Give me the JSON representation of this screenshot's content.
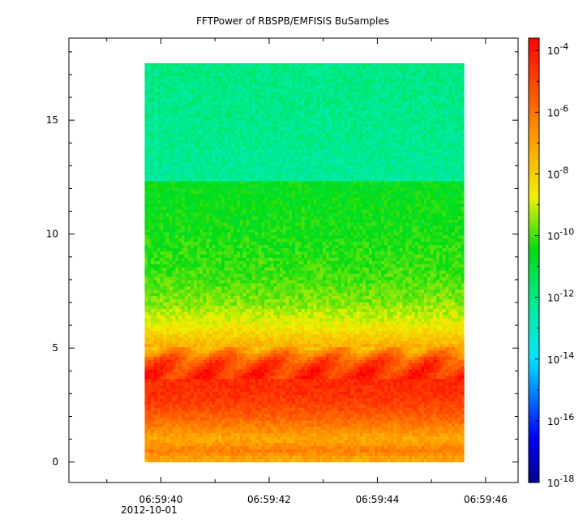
{
  "chart_data": {
    "type": "heatmap",
    "title": "FFTPower of RBSPB/EMFISIS  BuSamples",
    "xlabel": "",
    "ylabel": "",
    "x_tick_labels": [
      "06:59:40",
      "06:59:42",
      "06:59:44",
      "06:59:46"
    ],
    "x_tick_values_s": [
      40,
      42,
      44,
      46
    ],
    "x_date_label": "2012-10-01",
    "x_range_s": [
      38.3,
      46.6
    ],
    "x_data_range_s": [
      39.7,
      45.6
    ],
    "y_tick_labels": [
      "0",
      "5",
      "10",
      "15"
    ],
    "y_tick_values": [
      0,
      5,
      10,
      15
    ],
    "y_range": [
      -0.9,
      18.6
    ],
    "y_data_range": [
      0,
      17.5
    ],
    "colorbar": {
      "scale": "log",
      "range_exponent": [
        -18,
        -3.6
      ],
      "tick_exponents": [
        -18,
        -16,
        -14,
        -12,
        -10,
        -8,
        -6,
        -4
      ],
      "tick_base": "10"
    },
    "power_profile": [
      {
        "y": 0.0,
        "log10_power": -7.4
      },
      {
        "y": 0.5,
        "log10_power": -6.3
      },
      {
        "y": 1.0,
        "log10_power": -7.2
      },
      {
        "y": 1.5,
        "log10_power": -6.4
      },
      {
        "y": 2.0,
        "log10_power": -5.6
      },
      {
        "y": 2.5,
        "log10_power": -5.0
      },
      {
        "y": 3.0,
        "log10_power": -4.6
      },
      {
        "y": 3.5,
        "log10_power": -4.5
      },
      {
        "y": 4.0,
        "log10_power": -4.6
      },
      {
        "y": 4.5,
        "log10_power": -5.4
      },
      {
        "y": 5.0,
        "log10_power": -7.2
      },
      {
        "y": 5.5,
        "log10_power": -8.0
      },
      {
        "y": 6.0,
        "log10_power": -8.7
      },
      {
        "y": 7.0,
        "log10_power": -9.6
      },
      {
        "y": 8.0,
        "log10_power": -10.0
      },
      {
        "y": 10.0,
        "log10_power": -10.4
      },
      {
        "y": 12.0,
        "log10_power": -10.6
      },
      {
        "y": 12.3,
        "log10_power": -12.3
      },
      {
        "y": 15.0,
        "log10_power": -12.1
      },
      {
        "y": 17.5,
        "log10_power": -12.0
      }
    ]
  }
}
